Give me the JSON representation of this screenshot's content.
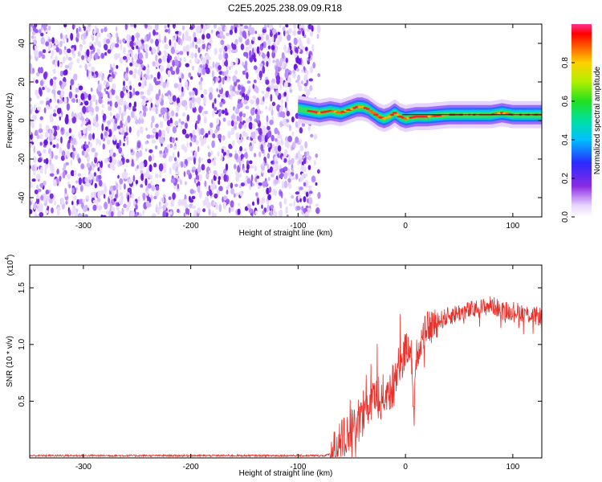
{
  "title": "C2E5.2025.238.09.09.R18",
  "colors": {
    "snr_line": "#e8312b",
    "scatter": "#6a1fe0",
    "line_black": "#000000"
  },
  "chart_data": [
    {
      "type": "heatmap",
      "title": "C2E5.2025.238.09.09.R18",
      "xlabel": "Height of straight line (km)",
      "ylabel": "Frequency (Hz)",
      "xlim": [
        -350,
        127
      ],
      "ylim": [
        -50,
        50
      ],
      "xticks": [
        -300,
        -200,
        -100,
        0,
        100
      ],
      "xtick_labels": [
        "-300",
        "-200",
        "-100",
        "0",
        "100"
      ],
      "yticks": [
        -40,
        -20,
        0,
        20,
        40
      ],
      "ytick_labels": [
        "-40",
        "-20",
        "0",
        "20",
        "40"
      ],
      "noise_region_x": [
        -350,
        -88
      ],
      "ridge": {
        "x": [
          -100,
          -90,
          -80,
          -70,
          -60,
          -50,
          -45,
          -40,
          -35,
          -30,
          -25,
          -20,
          -15,
          -10,
          -5,
          0,
          10,
          20,
          40,
          60,
          80,
          90,
          100,
          127
        ],
        "freq": [
          6,
          5,
          4,
          5,
          4,
          6,
          7,
          7,
          6,
          4,
          2,
          1,
          2,
          4,
          2,
          1,
          2,
          2,
          3,
          3,
          3,
          4,
          3,
          3
        ]
      },
      "colorbar": {
        "label": "Normalized spectral amplitude",
        "range": [
          0,
          1
        ],
        "ticks": [
          0.0,
          0.2,
          0.4,
          0.6,
          0.8
        ],
        "tick_labels": [
          "0.0",
          "0.2",
          "0.4",
          "0.6",
          "0.8"
        ]
      }
    },
    {
      "type": "line",
      "xlabel": "Height of straight line (km)",
      "ylabel": "SNR (10 * v/v)",
      "multiplier_label": "(x10",
      "multiplier_exp": "4",
      "xlim": [
        -350,
        127
      ],
      "ylim": [
        0,
        1.7
      ],
      "xticks": [
        -300,
        -200,
        -100,
        0,
        100
      ],
      "xtick_labels": [
        "-300",
        "-200",
        "-100",
        "0",
        "100"
      ],
      "yticks": [
        0.5,
        1.0,
        1.5
      ],
      "ytick_labels": [
        "0.5",
        "1.0",
        "1.5"
      ],
      "trend": {
        "x": [
          -350,
          -100,
          -75,
          -65,
          -60,
          -50,
          -40,
          -30,
          -20,
          -10,
          -5,
          0,
          5,
          8,
          10,
          15,
          20,
          30,
          40,
          50,
          60,
          70,
          80,
          90,
          100,
          110,
          120,
          127
        ],
        "y": [
          0.02,
          0.02,
          0.02,
          0.05,
          0.15,
          0.25,
          0.38,
          0.5,
          0.55,
          0.65,
          0.85,
          0.95,
          1.0,
          0.35,
          0.9,
          1.05,
          1.15,
          1.2,
          1.25,
          1.28,
          1.3,
          1.32,
          1.35,
          1.3,
          1.3,
          1.28,
          1.25,
          1.25
        ]
      },
      "series": [
        {
          "name": "SNR",
          "color": "#e8312b"
        }
      ]
    }
  ]
}
